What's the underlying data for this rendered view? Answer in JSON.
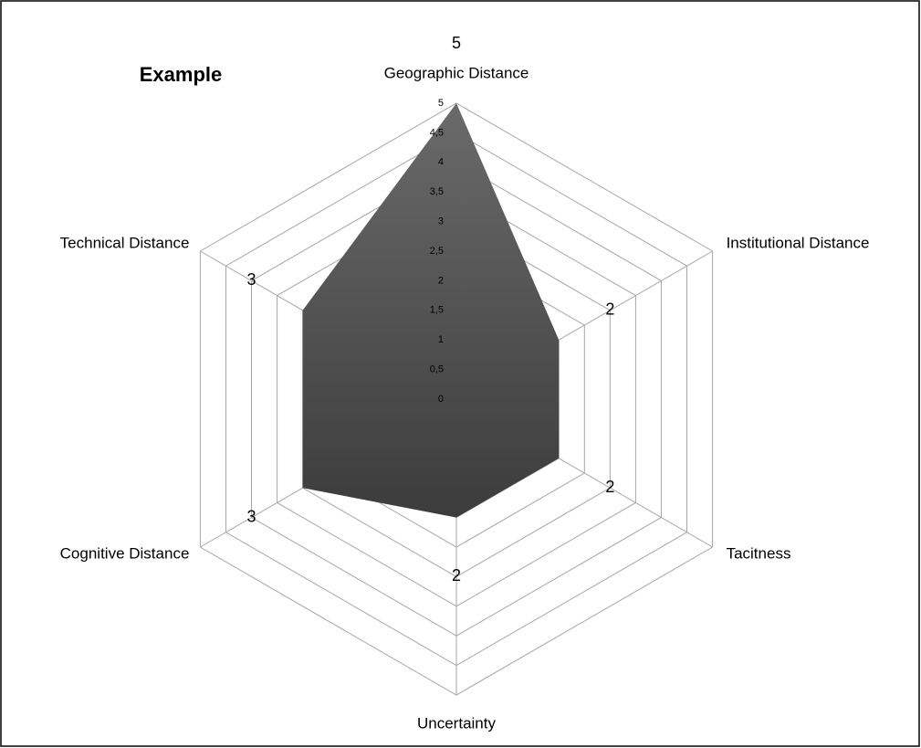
{
  "chart_data": {
    "type": "radar",
    "title": "Example",
    "categories": [
      "Geographic Distance",
      "Institutional Distance",
      "Tacitness",
      "Uncertainty",
      "Cognitive Distance",
      "Technical Distance"
    ],
    "values": [
      5,
      2,
      2,
      2,
      3,
      3
    ],
    "color": "#555555",
    "ylim": [
      0,
      5
    ],
    "yticks": [
      0,
      {
        "value": 0.5,
        "label": "0,5"
      },
      1,
      {
        "value": 1.5,
        "label": "1,5"
      },
      2,
      {
        "value": 2.5,
        "label": "2,5"
      },
      3,
      {
        "value": 3.5,
        "label": "3,5"
      },
      4,
      {
        "value": 4.5,
        "label": "4,5"
      },
      5
    ],
    "grid": true
  }
}
